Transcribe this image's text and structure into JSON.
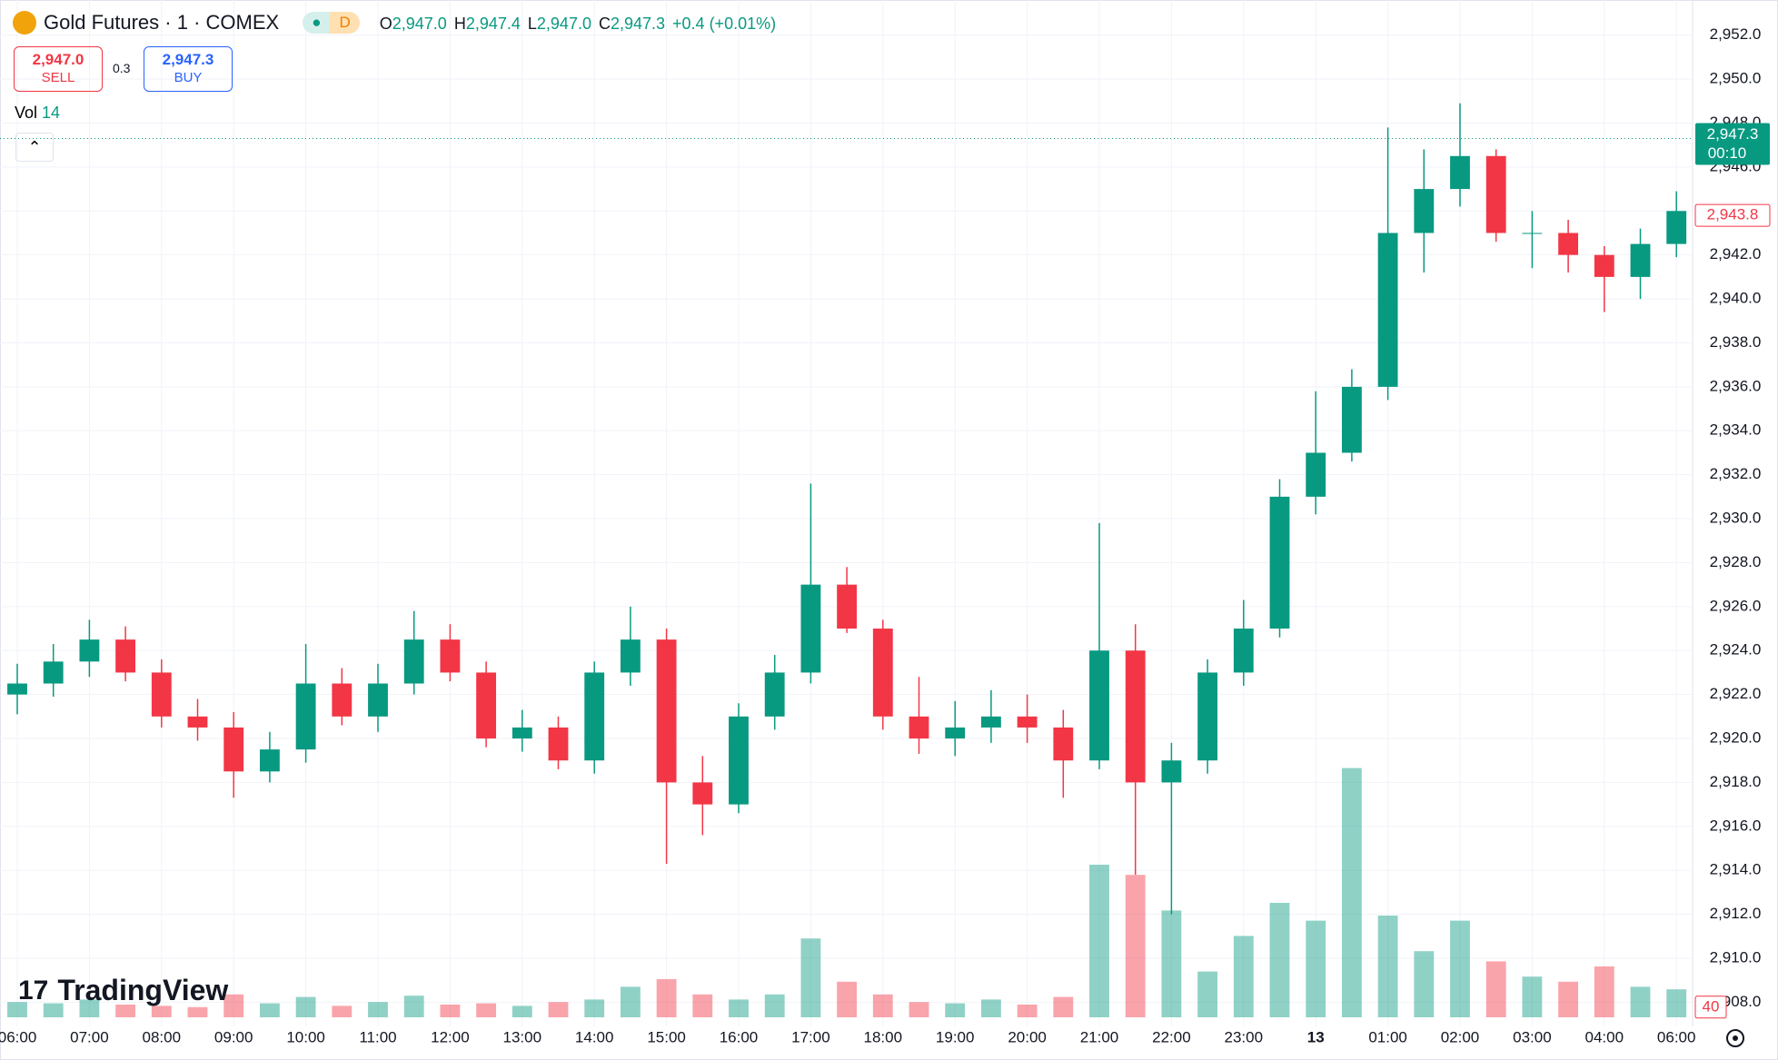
{
  "header": {
    "symbol": "Gold Futures · 1 · COMEX",
    "interval_badge": "D",
    "o_key": "O",
    "o_val": "2,947.0",
    "h_key": "H",
    "h_val": "2,947.4",
    "l_key": "L",
    "l_val": "2,947.0",
    "c_key": "C",
    "c_val": "2,947.3",
    "change": "+0.4 (+0.01%)",
    "sell_price": "2,947.0",
    "sell_label": "SELL",
    "spread": "0.3",
    "buy_price": "2,947.3",
    "buy_label": "BUY",
    "vol_key": "Vol",
    "vol_val": "14",
    "logo": "TradingView"
  },
  "chart_data": {
    "type": "candlestick",
    "up_color": "#089981",
    "down_color": "#f23645",
    "categories": [
      "06:00",
      null,
      "07:00",
      null,
      "08:00",
      null,
      "09:00",
      null,
      "10:00",
      null,
      "11:00",
      null,
      "12:00",
      null,
      "13:00",
      null,
      "14:00",
      null,
      "15:00",
      null,
      "16:00",
      null,
      "17:00",
      null,
      "18:00",
      null,
      "19:00",
      null,
      "20:00",
      null,
      "21:00",
      null,
      "22:00",
      null,
      "23:00",
      null,
      "13",
      null,
      "01:00",
      null,
      "02:00",
      null,
      "03:00",
      null,
      "04:00",
      null,
      "06:00"
    ],
    "open": [
      2922.0,
      2922.5,
      2923.5,
      2924.5,
      2923.0,
      2921.0,
      2920.5,
      2918.5,
      2919.5,
      2922.5,
      2921.0,
      2922.5,
      2924.5,
      2923.0,
      2920.0,
      2920.5,
      2919.0,
      2923.0,
      2924.5,
      2918.0,
      2917.0,
      2921.0,
      2923.0,
      2927.0,
      2925.0,
      2921.0,
      2920.0,
      2920.5,
      2921.0,
      2920.5,
      2919.0,
      2924.0,
      2918.0,
      2919.0,
      2923.0,
      2925.0,
      2931.0,
      2933.0,
      2936.0,
      2943.0,
      2945.0,
      2946.5,
      2943.0,
      2943.0,
      2942.0,
      2941.0,
      2942.5
    ],
    "high": [
      2923.4,
      2924.3,
      2925.4,
      2925.1,
      2923.6,
      2921.8,
      2921.2,
      2920.3,
      2924.3,
      2923.2,
      2923.4,
      2925.8,
      2925.2,
      2923.5,
      2921.3,
      2921.0,
      2923.5,
      2926.0,
      2925.0,
      2919.2,
      2921.6,
      2923.8,
      2931.6,
      2927.8,
      2925.4,
      2922.8,
      2921.7,
      2922.2,
      2922.0,
      2921.3,
      2929.8,
      2925.2,
      2919.8,
      2923.6,
      2926.3,
      2931.8,
      2935.8,
      2936.8,
      2947.8,
      2946.8,
      2948.9,
      2946.8,
      2944.0,
      2943.6,
      2942.4,
      2943.2,
      2944.9
    ],
    "low": [
      2921.1,
      2921.9,
      2922.8,
      2922.6,
      2920.5,
      2919.9,
      2917.3,
      2918.0,
      2918.9,
      2920.6,
      2920.3,
      2922.0,
      2922.6,
      2919.6,
      2919.4,
      2918.6,
      2918.4,
      2922.4,
      2914.3,
      2915.6,
      2916.6,
      2920.4,
      2922.5,
      2924.8,
      2920.4,
      2919.3,
      2919.2,
      2919.8,
      2919.8,
      2917.3,
      2918.6,
      2913.8,
      2912.0,
      2918.4,
      2922.4,
      2924.6,
      2930.2,
      2932.6,
      2935.4,
      2941.2,
      2944.2,
      2942.6,
      2941.4,
      2941.2,
      2939.4,
      2940.0,
      2941.9
    ],
    "close": [
      2922.5,
      2923.5,
      2924.5,
      2923.0,
      2921.0,
      2920.5,
      2918.5,
      2919.5,
      2922.5,
      2921.0,
      2922.5,
      2924.5,
      2923.0,
      2920.0,
      2920.5,
      2919.0,
      2923.0,
      2924.5,
      2918.0,
      2917.0,
      2921.0,
      2923.0,
      2927.0,
      2925.0,
      2921.0,
      2920.0,
      2920.5,
      2921.0,
      2920.5,
      2919.0,
      2924.0,
      2918.0,
      2919.0,
      2923.0,
      2925.0,
      2931.0,
      2933.0,
      2936.0,
      2943.0,
      2945.0,
      2946.5,
      2943.0,
      2943.0,
      2942.0,
      2941.0,
      2942.5,
      2944.0
    ],
    "volume": [
      60,
      55,
      70,
      50,
      45,
      40,
      90,
      55,
      80,
      45,
      60,
      85,
      50,
      55,
      45,
      60,
      70,
      120,
      150,
      90,
      70,
      90,
      310,
      140,
      90,
      60,
      55,
      70,
      50,
      80,
      600,
      560,
      420,
      180,
      320,
      450,
      380,
      980,
      400,
      260,
      380,
      220,
      160,
      140,
      200,
      120,
      110
    ],
    "vlim": [
      0,
      1000
    ],
    "ylim": [
      2906.9,
      2953.6
    ],
    "yticks": [
      {
        "value": 2908,
        "label": "2,908.0"
      },
      {
        "value": 2910,
        "label": "2,910.0"
      },
      {
        "value": 2912,
        "label": "2,912.0"
      },
      {
        "value": 2914,
        "label": "2,914.0"
      },
      {
        "value": 2916,
        "label": "2,916.0"
      },
      {
        "value": 2918,
        "label": "2,918.0"
      },
      {
        "value": 2920,
        "label": "2,920.0"
      },
      {
        "value": 2922,
        "label": "2,922.0"
      },
      {
        "value": 2924,
        "label": "2,924.0"
      },
      {
        "value": 2926,
        "label": "2,926.0"
      },
      {
        "value": 2928,
        "label": "2,928.0"
      },
      {
        "value": 2930,
        "label": "2,930.0"
      },
      {
        "value": 2932,
        "label": "2,932.0"
      },
      {
        "value": 2934,
        "label": "2,934.0"
      },
      {
        "value": 2936,
        "label": "2,936.0"
      },
      {
        "value": 2938,
        "label": "2,938.0"
      },
      {
        "value": 2940,
        "label": "2,940.0"
      },
      {
        "value": 2942,
        "label": "2,942.0"
      },
      {
        "value": 2944,
        "label": "2,944.0"
      },
      {
        "value": 2946,
        "label": "2,946.0"
      },
      {
        "value": 2948,
        "label": "2,948.0"
      },
      {
        "value": 2950,
        "label": "2,950.0"
      },
      {
        "value": 2952,
        "label": "2,952.0"
      }
    ],
    "grid": true,
    "last_price": {
      "value": 2947.3,
      "label": "2,947.3"
    },
    "countdown": "00:10",
    "price_tag": {
      "value": 2943.8,
      "label": "2,943.8"
    },
    "volume_tag": 40
  }
}
